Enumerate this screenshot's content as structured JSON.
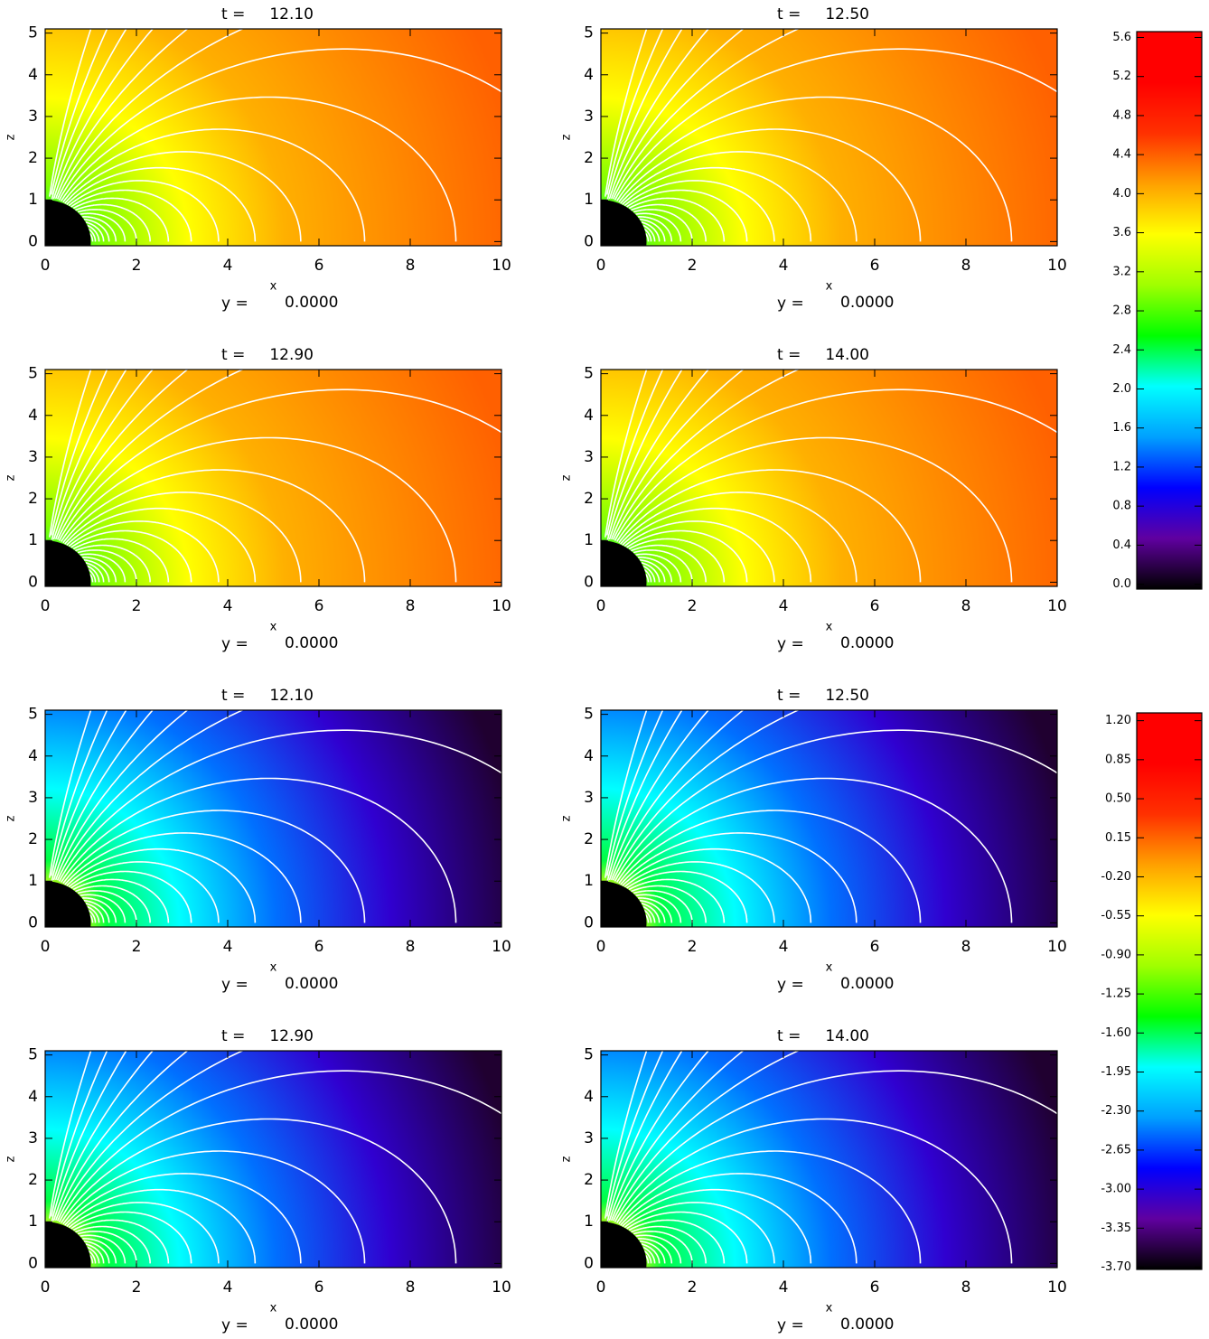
{
  "chart_data": [
    {
      "type": "field-map",
      "title": "t =     12.10",
      "xlabel": "x",
      "ylabel": "z",
      "annotation": "y =",
      "annotation_value": "0.0000",
      "xlim": [
        0,
        10
      ],
      "ylim": [
        -0.1,
        5.1
      ],
      "xticks": [
        0,
        2,
        4,
        6,
        8,
        10
      ],
      "yticks": [
        0,
        1,
        2,
        3,
        4,
        5
      ]
    },
    {
      "type": "field-map",
      "title": "t =     12.50",
      "xlabel": "x",
      "ylabel": "z",
      "annotation": "y =",
      "annotation_value": "0.0000",
      "xlim": [
        0,
        10
      ],
      "ylim": [
        -0.1,
        5.1
      ],
      "xticks": [
        0,
        2,
        4,
        6,
        8,
        10
      ],
      "yticks": [
        0,
        1,
        2,
        3,
        4,
        5
      ]
    },
    {
      "type": "field-map",
      "title": "t =     12.90",
      "xlabel": "x",
      "ylabel": "z",
      "annotation": "y =",
      "annotation_value": "0.0000",
      "xlim": [
        0,
        10
      ],
      "ylim": [
        -0.1,
        5.1
      ],
      "xticks": [
        0,
        2,
        4,
        6,
        8,
        10
      ],
      "yticks": [
        0,
        1,
        2,
        3,
        4,
        5
      ]
    },
    {
      "type": "field-map",
      "title": "t =     14.00",
      "xlabel": "x",
      "ylabel": "z",
      "annotation": "y =",
      "annotation_value": "0.0000",
      "xlim": [
        0,
        10
      ],
      "ylim": [
        -0.1,
        5.1
      ],
      "xticks": [
        0,
        2,
        4,
        6,
        8,
        10
      ],
      "yticks": [
        0,
        1,
        2,
        3,
        4,
        5
      ]
    },
    {
      "type": "field-map",
      "title": "t =     12.10",
      "xlabel": "x",
      "ylabel": "z",
      "annotation": "y =",
      "annotation_value": "0.0000",
      "xlim": [
        0,
        10
      ],
      "ylim": [
        -0.1,
        5.1
      ],
      "xticks": [
        0,
        2,
        4,
        6,
        8,
        10
      ],
      "yticks": [
        0,
        1,
        2,
        3,
        4,
        5
      ]
    },
    {
      "type": "field-map",
      "title": "t =     12.50",
      "xlabel": "x",
      "ylabel": "z",
      "annotation": "y =",
      "annotation_value": "0.0000",
      "xlim": [
        0,
        10
      ],
      "ylim": [
        -0.1,
        5.1
      ],
      "xticks": [
        0,
        2,
        4,
        6,
        8,
        10
      ],
      "yticks": [
        0,
        1,
        2,
        3,
        4,
        5
      ]
    },
    {
      "type": "field-map",
      "title": "t =     12.90",
      "xlabel": "x",
      "ylabel": "z",
      "annotation": "y =",
      "annotation_value": "0.0000",
      "xlim": [
        0,
        10
      ],
      "ylim": [
        -0.1,
        5.1
      ],
      "xticks": [
        0,
        2,
        4,
        6,
        8,
        10
      ],
      "yticks": [
        0,
        1,
        2,
        3,
        4,
        5
      ]
    },
    {
      "type": "field-map",
      "title": "t =     14.00",
      "xlabel": "x",
      "ylabel": "z",
      "annotation": "y =",
      "annotation_value": "0.0000",
      "xlim": [
        0,
        10
      ],
      "ylim": [
        -0.1,
        5.1
      ],
      "xticks": [
        0,
        2,
        4,
        6,
        8,
        10
      ],
      "yticks": [
        0,
        1,
        2,
        3,
        4,
        5
      ]
    },
    {
      "type": "colorbar",
      "ylim": [
        -0.05,
        5.66
      ],
      "colormap": [
        "#000000",
        "#6000a0",
        "#0000ff",
        "#00a0ff",
        "#00ffff",
        "#00ff00",
        "#a0ff00",
        "#ffff00",
        "#ffa000",
        "#ff3000",
        "#ff0000",
        "#ff0000"
      ],
      "yticks": [
        {
          "value": 0,
          "label": "0.0"
        },
        0.4,
        0.8,
        1.2,
        1.6,
        {
          "value": 2,
          "label": "2.0"
        },
        2.4,
        2.8,
        3.2,
        3.6,
        {
          "value": 4,
          "label": "4.0"
        },
        4.4,
        4.8,
        5.2,
        5.6
      ]
    },
    {
      "type": "colorbar",
      "ylim": [
        -3.72,
        1.27
      ],
      "colormap": [
        "#000000",
        "#6000a0",
        "#0000ff",
        "#00a0ff",
        "#00ffff",
        "#00ff00",
        "#a0ff00",
        "#ffff00",
        "#ffa000",
        "#ff3000",
        "#ff0000",
        "#ff0000"
      ],
      "yticks": [
        {
          "value": -3.7,
          "label": "-3.70"
        },
        -3.35,
        {
          "value": -3,
          "label": "-3.00"
        },
        -2.65,
        {
          "value": -2.3,
          "label": "-2.30"
        },
        -1.95,
        {
          "value": -1.6,
          "label": "-1.60"
        },
        -1.25,
        {
          "value": -0.9,
          "label": "-0.90"
        },
        -0.55,
        {
          "value": -0.2,
          "label": "-0.20"
        },
        0.15,
        {
          "value": 0.5,
          "label": "0.50"
        },
        0.85,
        {
          "value": 1.2,
          "label": "1.20"
        }
      ]
    }
  ]
}
